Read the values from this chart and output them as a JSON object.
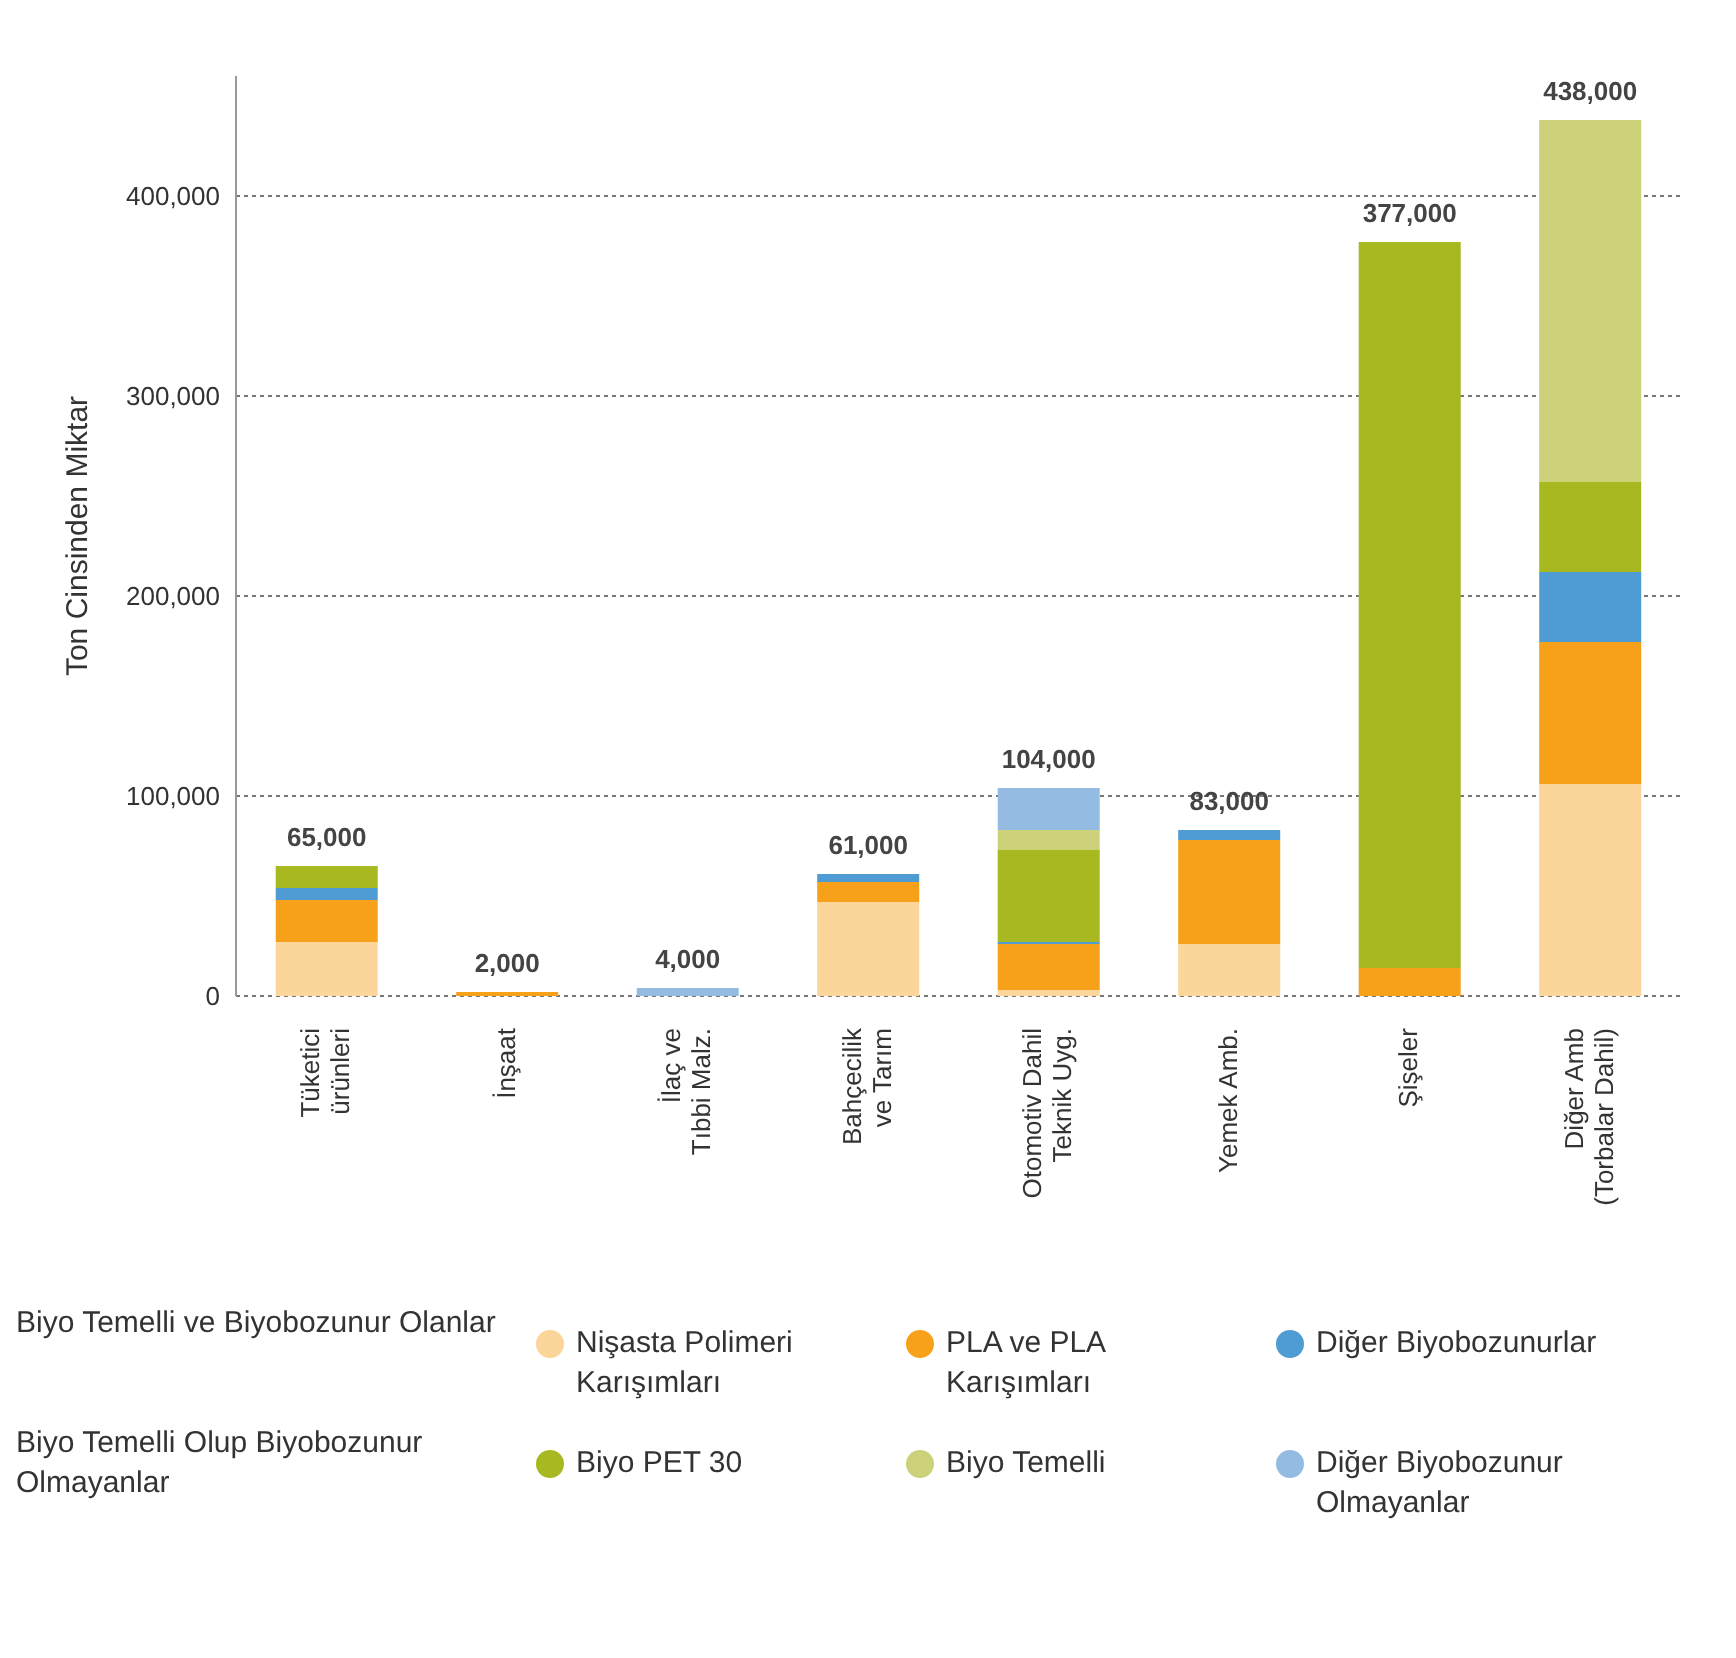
{
  "chart_data": {
    "type": "bar",
    "stacked": true,
    "ylabel": "Ton Cinsinden Miktar",
    "categories": [
      "Tüketici\nürünleri",
      "İnşaat",
      "İlaç ve\nTıbbi Malz.",
      "Bahçecilik\nve Tarım",
      "Otomotiv Dahil\nTeknik Uyg.",
      "Yemek Amb.",
      "Şişeler",
      "Diğer Amb\n(Torbalar Dahil)"
    ],
    "series": [
      {
        "name": "Nişasta Polimeri Karışımları",
        "color": "#fcd59a",
        "values": [
          27000,
          null,
          null,
          47000,
          3000,
          26000,
          null,
          106000
        ]
      },
      {
        "name": "PLA ve PLA Karışımları",
        "color": "#f7a11a",
        "values": [
          21000,
          2000,
          null,
          10000,
          23000,
          52000,
          14000,
          71000
        ]
      },
      {
        "name": "Diğer Biyobozunurlar",
        "color": "#4f9bd4",
        "values": [
          6000,
          null,
          null,
          4000,
          1000,
          5000,
          null,
          35000
        ]
      },
      {
        "name": "Biyo PET 30",
        "color": "#a8b820",
        "values": [
          11000,
          null,
          null,
          null,
          46000,
          null,
          363000,
          45000
        ]
      },
      {
        "name": "Biyo Temelli",
        "color": "#ccd17a",
        "values": [
          null,
          null,
          null,
          null,
          10000,
          null,
          null,
          181000
        ]
      },
      {
        "name": "Diğer Biyobozunur Olmayanlar",
        "color": "#94bce3",
        "values": [
          null,
          null,
          4000,
          null,
          21000,
          null,
          null,
          null
        ]
      }
    ],
    "totals": [
      "65,000",
      "2,000",
      "4,000",
      "61,000",
      "104,000",
      "83,000",
      "377,000",
      "438,000"
    ],
    "annotations": [
      "Biyo Temelli ve Biyobozunur Olanlar",
      "Biyo Temelli Olup Biyobozunur Olmayanlar"
    ],
    "ylim": [
      0,
      460000
    ],
    "yticks": [
      0,
      {
        "value": 100000,
        "label": "100,000"
      },
      {
        "value": 200000,
        "label": "200,000"
      },
      {
        "value": 300000,
        "label": "300,000"
      },
      {
        "value": 400000,
        "label": "400,000"
      }
    ],
    "grid": "y",
    "legend": "bottom"
  }
}
